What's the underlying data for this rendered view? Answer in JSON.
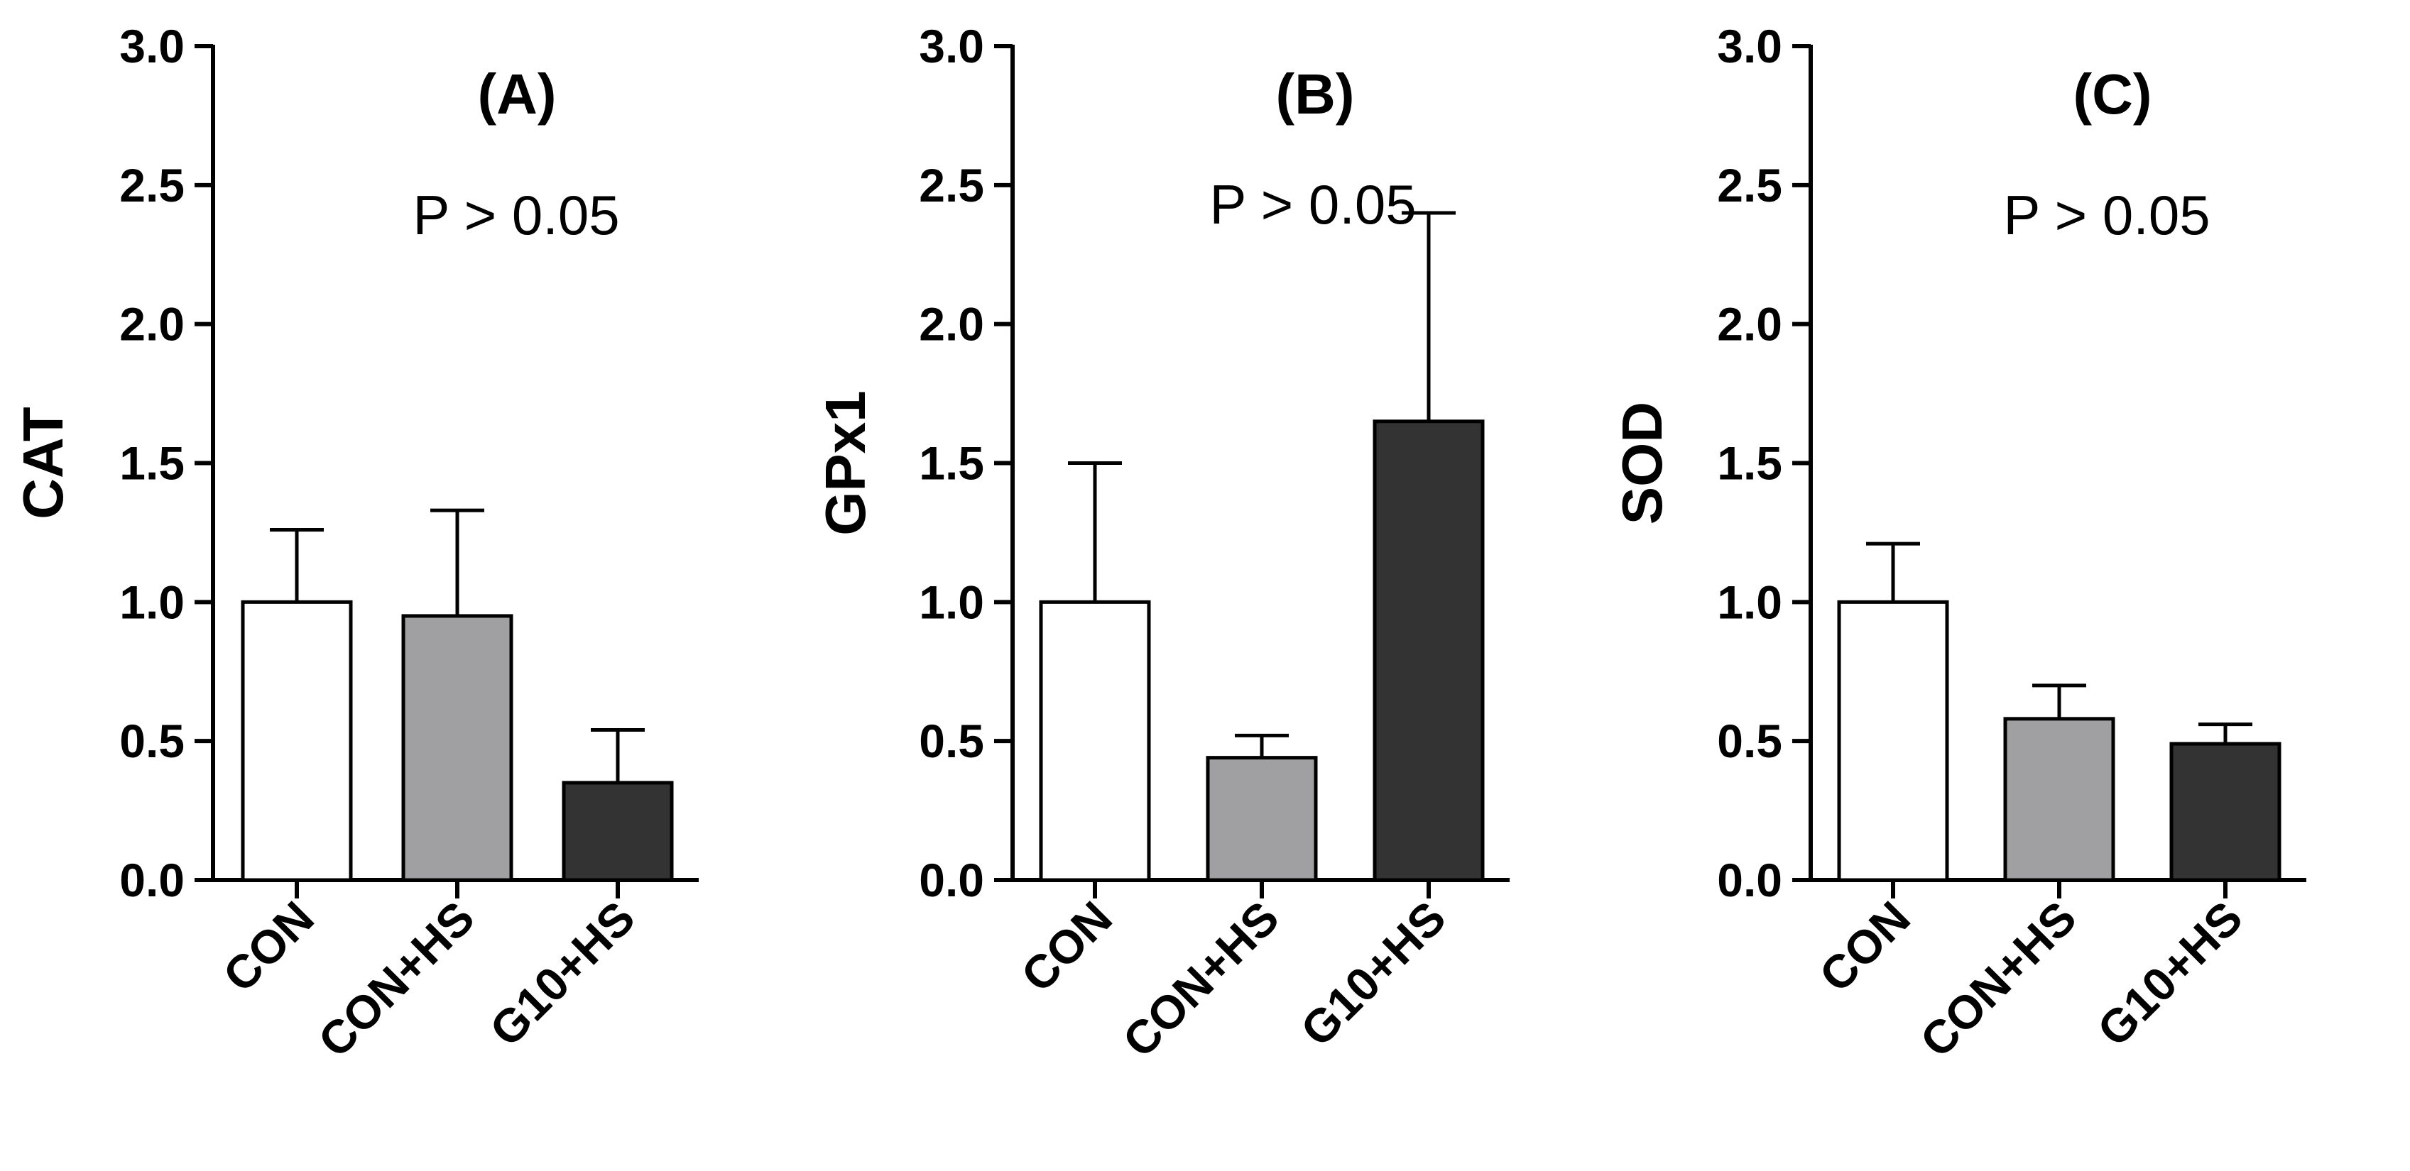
{
  "chart_data": [
    {
      "type": "bar",
      "title": "(A)",
      "annotation": "P > 0.05",
      "xlabel": "",
      "ylabel": "CAT",
      "categories": [
        "CON",
        "CON+HS",
        "G10+HS"
      ],
      "values": [
        1.0,
        0.95,
        0.35
      ],
      "errors": [
        0.26,
        0.38,
        0.19
      ],
      "ylim": [
        0,
        3
      ],
      "yticks": [
        "0.0",
        "0.5",
        "1.0",
        "1.5",
        "2.0",
        "2.5",
        "3.0"
      ],
      "bar_colors": [
        "#ffffff",
        "#a0a0a2",
        "#333333"
      ]
    },
    {
      "type": "bar",
      "title": "(B)",
      "annotation": "P > 0.05",
      "xlabel": "",
      "ylabel": "GPx1",
      "categories": [
        "CON",
        "CON+HS",
        "G10+HS"
      ],
      "values": [
        1.0,
        0.44,
        1.65
      ],
      "errors": [
        0.5,
        0.08,
        0.75
      ],
      "ylim": [
        0,
        3
      ],
      "yticks": [
        "0.0",
        "0.5",
        "1.0",
        "1.5",
        "2.0",
        "2.5",
        "3.0"
      ],
      "bar_colors": [
        "#ffffff",
        "#a0a0a2",
        "#333333"
      ]
    },
    {
      "type": "bar",
      "title": "(C)",
      "annotation": "P > 0.05",
      "xlabel": "",
      "ylabel": "SOD",
      "categories": [
        "CON",
        "CON+HS",
        "G10+HS"
      ],
      "values": [
        1.0,
        0.58,
        0.49
      ],
      "errors": [
        0.21,
        0.12,
        0.07
      ],
      "ylim": [
        0,
        3
      ],
      "yticks": [
        "0.0",
        "0.5",
        "1.0",
        "1.5",
        "2.0",
        "2.5",
        "3.0"
      ],
      "bar_colors": [
        "#ffffff",
        "#a0a0a2",
        "#333333"
      ]
    }
  ]
}
